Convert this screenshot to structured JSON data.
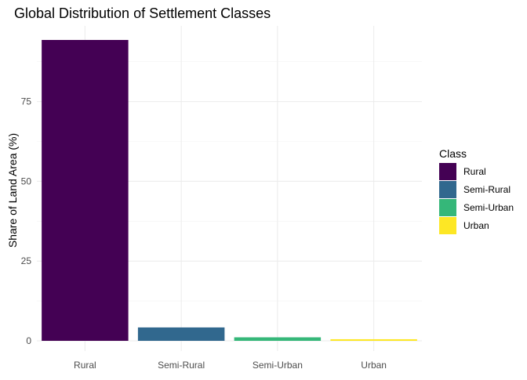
{
  "chart_data": {
    "type": "bar",
    "title": "Global Distribution of Settlement Classes",
    "xlabel": "",
    "ylabel": "Share of Land Area (%)",
    "categories": [
      "Rural",
      "Semi-Rural",
      "Semi-Urban",
      "Urban"
    ],
    "values": [
      94.3,
      4.2,
      1.1,
      0.5
    ],
    "colors": [
      "#440154",
      "#31688e",
      "#35b779",
      "#fde725"
    ],
    "ylim": [
      0,
      99
    ],
    "yticks": [
      0,
      25,
      50,
      75
    ],
    "ytick_labels": [
      "0",
      "25",
      "50",
      "75"
    ],
    "grid": true,
    "legend": {
      "title": "Class",
      "position": "right",
      "items": [
        "Rural",
        "Semi-Rural",
        "Semi-Urban",
        "Urban"
      ]
    }
  }
}
